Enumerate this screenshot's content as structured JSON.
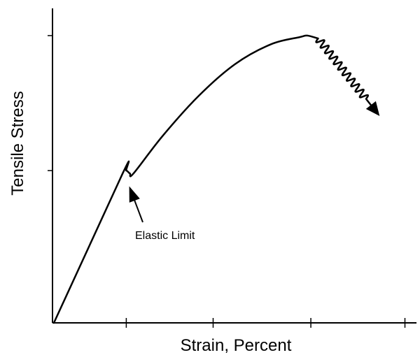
{
  "chart_data": {
    "type": "line",
    "title": "",
    "xlabel": "Strain, Percent",
    "ylabel": "Tensile Stress",
    "grid": false,
    "legend": "none",
    "x_tick_labels": [],
    "y_tick_labels": [],
    "series": [
      {
        "values_are_relative": true,
        "x_range": [
          0,
          1
        ],
        "y_range": [
          0,
          1
        ],
        "points": [
          {
            "x": 0.0,
            "y": 0.0
          },
          {
            "x": 0.19,
            "y": 0.52
          },
          {
            "x": 0.2,
            "y": 0.53
          },
          {
            "x": 0.21,
            "y": 0.52
          },
          {
            "x": 0.22,
            "y": 0.52
          },
          {
            "x": 0.3,
            "y": 0.65
          },
          {
            "x": 0.4,
            "y": 0.79
          },
          {
            "x": 0.5,
            "y": 0.9
          },
          {
            "x": 0.6,
            "y": 0.97
          },
          {
            "x": 0.68,
            "y": 0.995
          },
          {
            "x": 0.7,
            "y": 1.0
          },
          {
            "x": 0.73,
            "y": 0.99
          }
        ],
        "failure_region": {
          "from": {
            "x": 0.73,
            "y": 0.99
          },
          "to": {
            "x": 0.9,
            "y": 0.72
          },
          "style": "wavy",
          "ends_with_arrow": true
        }
      }
    ],
    "annotations": [
      {
        "text": "Elastic Limit",
        "points_to": {
          "x": 0.21,
          "y": 0.5
        }
      }
    ],
    "y_ticks_relative": [
      0.53,
      1.0
    ],
    "x_ticks_relative": [
      0.2,
      0.44,
      0.71,
      0.97
    ]
  },
  "colors": {
    "ink": "#000000",
    "background": "#ffffff"
  }
}
